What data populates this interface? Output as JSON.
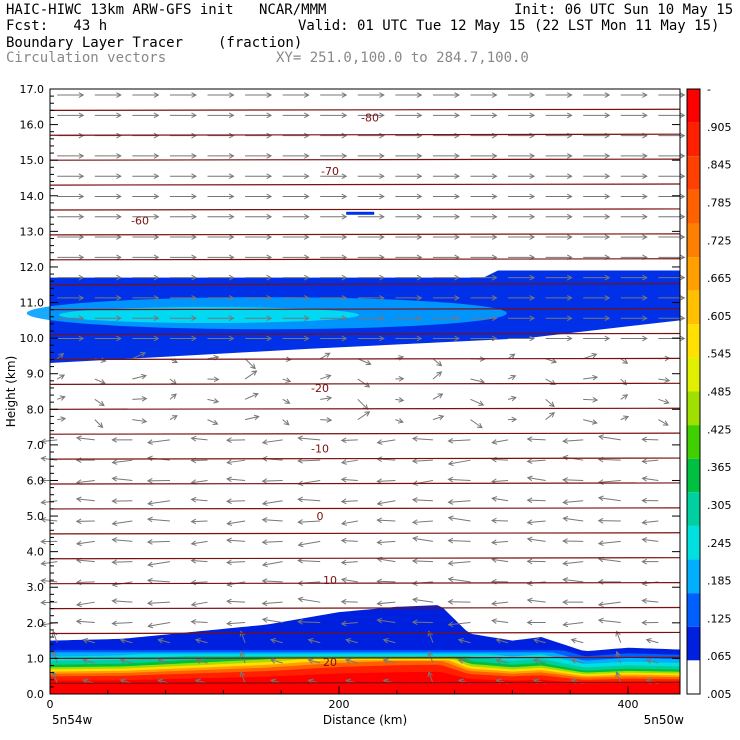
{
  "header": {
    "title": "HAIC-HIWC 13km ARW-GFS init",
    "org": "NCAR/MMM",
    "init": "Init: 06 UTC Sun 10 May 15",
    "fcst": "Fcst:   43 h",
    "valid": "Valid: 01 UTC Tue 12 May 15 (22 LST Mon 11 May 15)",
    "field": "Boundary Layer Tracer",
    "units": "(fraction)",
    "vectors": "Circulation vectors",
    "xy": "XY= 251.0,100.0 to 284.7,100.0"
  },
  "chart_data": {
    "type": "heatmap",
    "title": "Boundary Layer Tracer",
    "xlabel": "Distance (km)",
    "ylabel": "Height (km)",
    "xlim": [
      0,
      436
    ],
    "ylim": [
      0,
      17
    ],
    "x_ticks": [
      0,
      200,
      400
    ],
    "x_tick_labels": [
      "0",
      "200",
      "400"
    ],
    "y_ticks": [
      0,
      1,
      2,
      3,
      4,
      5,
      6,
      7,
      8,
      9,
      10,
      11,
      12,
      13,
      14,
      15,
      16,
      17
    ],
    "y_tick_labels": [
      "0.0",
      "1.0",
      "2.0",
      "3.0",
      "4.0",
      "5.0",
      "6.0",
      "7.0",
      "8.0",
      "9.0",
      "10.0",
      "11.0",
      "12.0",
      "13.0",
      "14.0",
      "15.0",
      "16.0",
      "17.0"
    ],
    "x_end_labels": [
      "5n54w",
      "5n50w"
    ],
    "colorbar": {
      "labels": [
        "-",
        ".905",
        ".845",
        ".785",
        ".725",
        ".665",
        ".605",
        ".545",
        ".485",
        ".425",
        ".365",
        ".305",
        ".245",
        ".185",
        ".125",
        ".065",
        ".005"
      ],
      "colors": [
        "#ff0000",
        "#ff2000",
        "#ff4000",
        "#ff6000",
        "#ff8000",
        "#ffa000",
        "#ffc000",
        "#ffe000",
        "#e0f000",
        "#a0e000",
        "#40d000",
        "#00c040",
        "#00d0a0",
        "#00e0e0",
        "#00b0ff",
        "#0060ff",
        "#0020e0",
        "#ffffff"
      ]
    },
    "temperature_contours": [
      {
        "label": "-80",
        "height_km": 16.2
      },
      {
        "label": "-70",
        "height_km": 14.7
      },
      {
        "label": "-60",
        "height_km": 13.3
      },
      {
        "label": "-20",
        "height_km": 8.6
      },
      {
        "label": "-10",
        "height_km": 6.9
      },
      {
        "label": "0",
        "height_km": 5.0
      },
      {
        "label": "10",
        "height_km": 3.2
      },
      {
        "label": "20",
        "height_km": 0.9
      }
    ],
    "upper_tracer_layer": {
      "base_km": [
        9.3,
        10.5
      ],
      "top_km": [
        11.7,
        11.9
      ]
    },
    "boundary_layer_top_km": [
      [
        0,
        1.5
      ],
      [
        50,
        1.55
      ],
      [
        100,
        1.75
      ],
      [
        150,
        1.95
      ],
      [
        200,
        2.3
      ],
      [
        240,
        2.45
      ],
      [
        270,
        2.5
      ],
      [
        290,
        1.7
      ],
      [
        320,
        1.5
      ],
      [
        340,
        1.6
      ],
      [
        370,
        1.2
      ],
      [
        400,
        1.3
      ],
      [
        436,
        1.25
      ]
    ]
  }
}
